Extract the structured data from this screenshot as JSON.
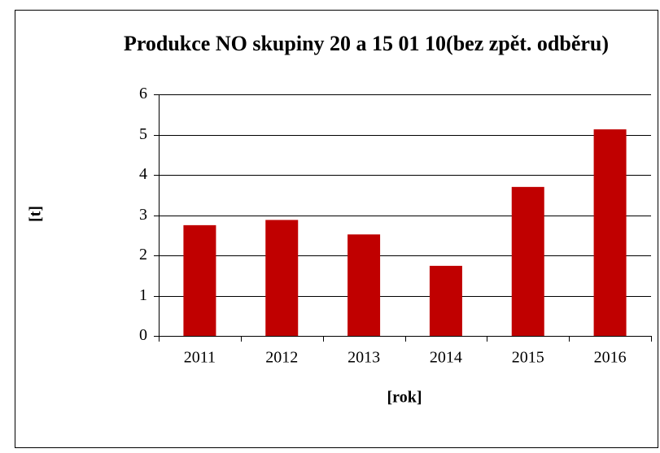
{
  "chart_data": {
    "type": "bar",
    "title": "Produkce NO skupiny 20 a 15 01 10(bez zpět. odběru)",
    "x_label": "[rok]",
    "y_label": "[t]",
    "categories": [
      "2011",
      "2012",
      "2013",
      "2014",
      "2015",
      "2016"
    ],
    "values": [
      2.75,
      2.88,
      2.52,
      1.74,
      3.7,
      5.13
    ],
    "color": "#c00000",
    "ylim": [
      0,
      6
    ],
    "yticks": [
      0,
      1,
      2,
      3,
      4,
      5,
      6
    ],
    "grid": true
  }
}
